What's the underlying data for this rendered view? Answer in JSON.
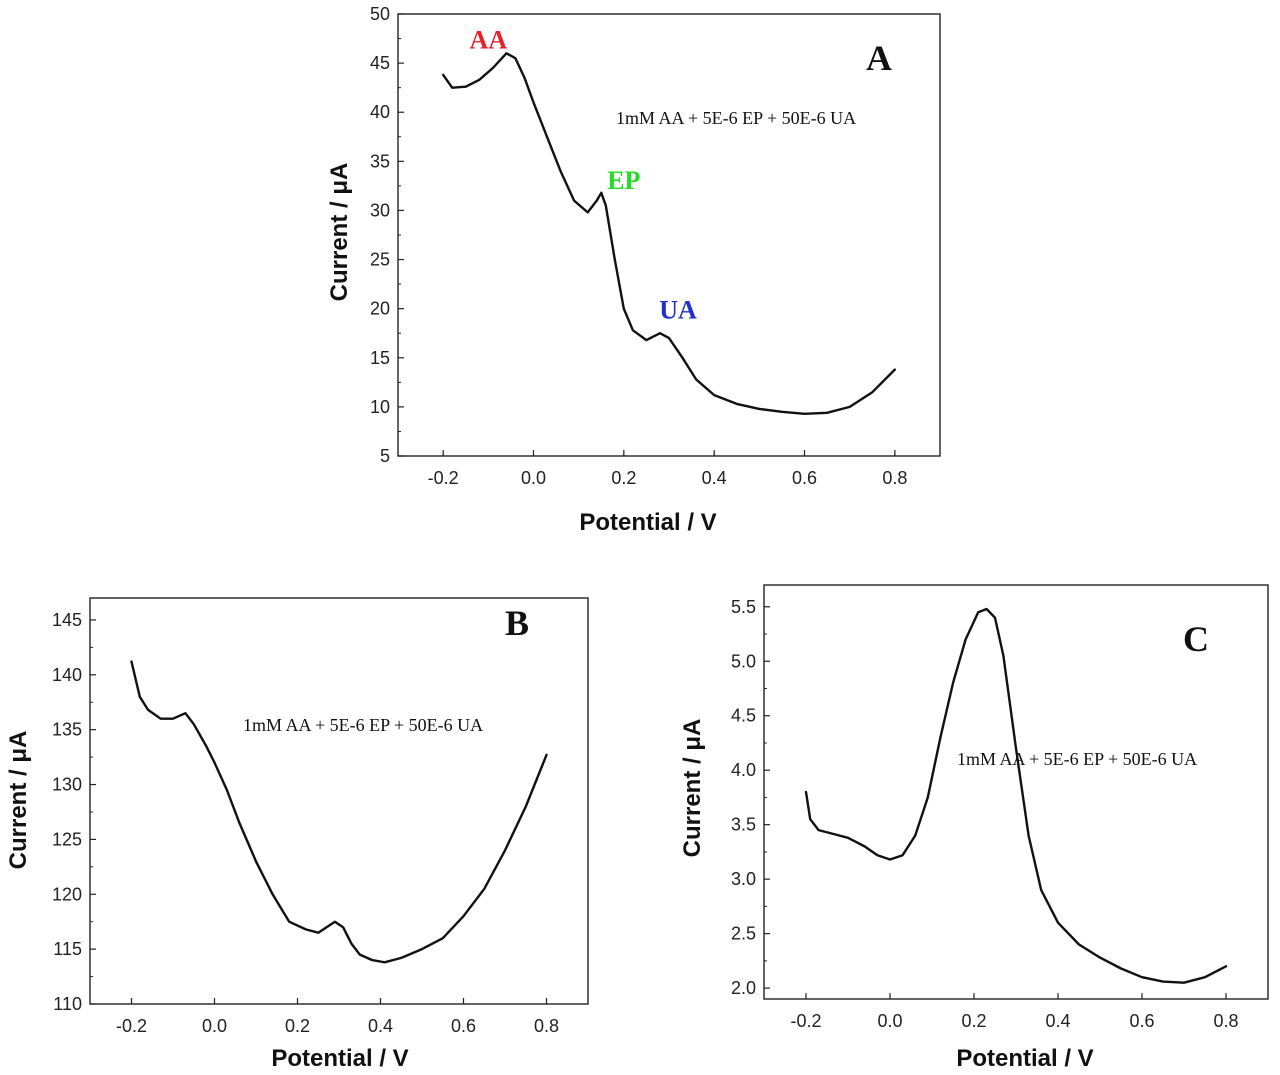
{
  "chart_data": [
    {
      "type": "line",
      "panel": "A",
      "xlabel": "Potential / V",
      "ylabel": "Current / μA",
      "xlim": [
        -0.3,
        0.9
      ],
      "ylim": [
        5,
        50
      ],
      "xticks": [
        -0.2,
        0.0,
        0.2,
        0.4,
        0.6,
        0.8
      ],
      "xtick_labels": [
        "-0.2",
        "0.0",
        "0.2",
        "0.4",
        "0.6",
        "0.8"
      ],
      "yticks": [
        5,
        10,
        15,
        20,
        25,
        30,
        35,
        40,
        45,
        50
      ],
      "ytick_labels": [
        "5",
        "10",
        "15",
        "20",
        "25",
        "30",
        "35",
        "40",
        "45",
        "50"
      ],
      "annotation": "1mM AA + 5E-6 EP + 50E-6 UA",
      "peaks": [
        {
          "label": "AA",
          "color": "#e8202a",
          "x": -0.1,
          "y": 46.5
        },
        {
          "label": "EP",
          "color": "#22dd22",
          "x": 0.2,
          "y": 32.2
        },
        {
          "label": "UA",
          "color": "#1f2fd0",
          "x": 0.32,
          "y": 19.0
        }
      ],
      "series": [
        {
          "x": [
            -0.2,
            -0.18,
            -0.15,
            -0.12,
            -0.09,
            -0.06,
            -0.04,
            -0.02,
            0.0,
            0.03,
            0.06,
            0.09,
            0.12,
            0.14,
            0.15,
            0.16,
            0.18,
            0.2,
            0.22,
            0.25,
            0.28,
            0.3,
            0.33,
            0.36,
            0.4,
            0.45,
            0.5,
            0.55,
            0.6,
            0.65,
            0.7,
            0.75,
            0.8
          ],
          "y": [
            43.8,
            42.5,
            42.6,
            43.3,
            44.5,
            46.0,
            45.5,
            43.5,
            41.0,
            37.5,
            34.0,
            31.0,
            29.8,
            31.0,
            31.8,
            30.5,
            25.0,
            20.0,
            17.8,
            16.8,
            17.5,
            17.0,
            15.0,
            12.8,
            11.2,
            10.3,
            9.8,
            9.5,
            9.3,
            9.4,
            10.0,
            11.5,
            13.8
          ]
        }
      ]
    },
    {
      "type": "line",
      "panel": "B",
      "xlabel": "Potential / V",
      "ylabel": "Current / μA",
      "xlim": [
        -0.3,
        0.9
      ],
      "ylim": [
        110,
        147
      ],
      "xticks": [
        -0.2,
        0.0,
        0.2,
        0.4,
        0.6,
        0.8
      ],
      "xtick_labels": [
        "-0.2",
        "0.0",
        "0.2",
        "0.4",
        "0.6",
        "0.8"
      ],
      "yticks": [
        110,
        115,
        120,
        125,
        130,
        135,
        140,
        145
      ],
      "ytick_labels": [
        "110",
        "115",
        "120",
        "125",
        "130",
        "135",
        "140",
        "145"
      ],
      "annotation": "1mM AA + 5E-6 EP + 50E-6 UA",
      "series": [
        {
          "x": [
            -0.2,
            -0.18,
            -0.16,
            -0.13,
            -0.1,
            -0.07,
            -0.05,
            -0.02,
            0.0,
            0.03,
            0.06,
            0.1,
            0.14,
            0.18,
            0.22,
            0.25,
            0.27,
            0.29,
            0.31,
            0.33,
            0.35,
            0.38,
            0.41,
            0.45,
            0.5,
            0.55,
            0.6,
            0.65,
            0.7,
            0.75,
            0.8
          ],
          "y": [
            141.2,
            138.0,
            136.8,
            136.0,
            136.0,
            136.5,
            135.5,
            133.5,
            132.0,
            129.5,
            126.5,
            123.0,
            120.0,
            117.5,
            116.8,
            116.5,
            117.0,
            117.5,
            117.0,
            115.5,
            114.5,
            114.0,
            113.8,
            114.2,
            115.0,
            116.0,
            118.0,
            120.5,
            124.0,
            128.0,
            132.7
          ]
        }
      ]
    },
    {
      "type": "line",
      "panel": "C",
      "xlabel": "Potential / V",
      "ylabel": "Current / μA",
      "xlim": [
        -0.3,
        0.9
      ],
      "ylim": [
        1.9,
        5.7
      ],
      "xticks": [
        -0.2,
        0.0,
        0.2,
        0.4,
        0.6,
        0.8
      ],
      "xtick_labels": [
        "-0.2",
        "0.0",
        "0.2",
        "0.4",
        "0.6",
        "0.8"
      ],
      "yticks": [
        2.0,
        2.5,
        3.0,
        3.5,
        4.0,
        4.5,
        5.0,
        5.5
      ],
      "ytick_labels": [
        "2.0",
        "2.5",
        "3.0",
        "3.5",
        "4.0",
        "4.5",
        "5.0",
        "5.5"
      ],
      "annotation": "1mM AA + 5E-6 EP + 50E-6 UA",
      "series": [
        {
          "x": [
            -0.2,
            -0.19,
            -0.17,
            -0.14,
            -0.1,
            -0.06,
            -0.03,
            0.0,
            0.03,
            0.06,
            0.09,
            0.12,
            0.15,
            0.18,
            0.21,
            0.23,
            0.25,
            0.27,
            0.3,
            0.33,
            0.36,
            0.4,
            0.45,
            0.5,
            0.55,
            0.6,
            0.65,
            0.7,
            0.75,
            0.8
          ],
          "y": [
            3.8,
            3.55,
            3.45,
            3.42,
            3.38,
            3.3,
            3.22,
            3.18,
            3.22,
            3.4,
            3.75,
            4.3,
            4.8,
            5.2,
            5.45,
            5.48,
            5.4,
            5.05,
            4.2,
            3.4,
            2.9,
            2.6,
            2.4,
            2.28,
            2.18,
            2.1,
            2.06,
            2.05,
            2.1,
            2.2
          ]
        }
      ]
    }
  ]
}
